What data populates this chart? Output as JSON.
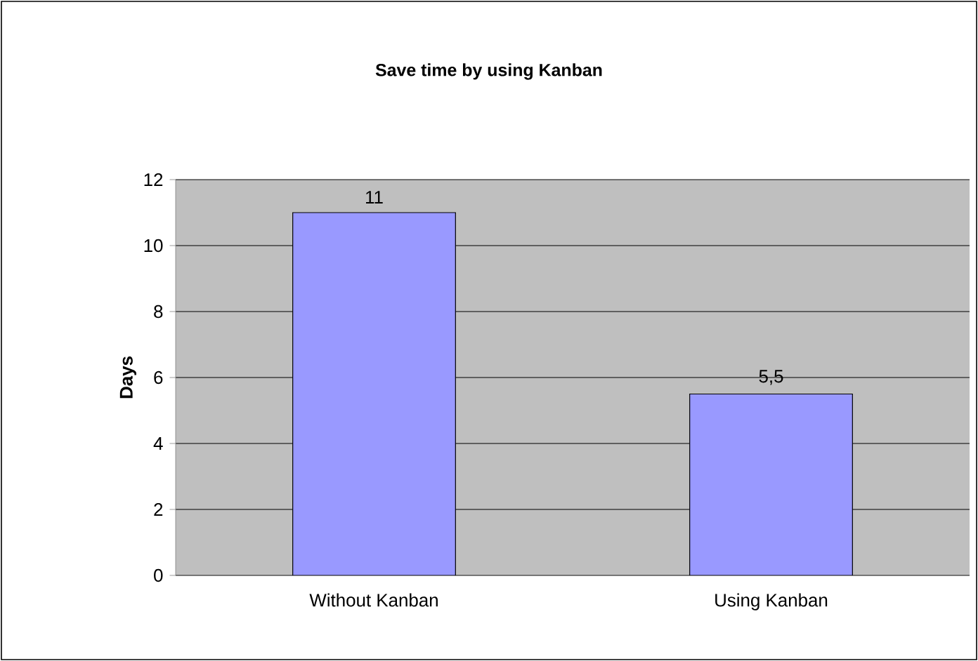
{
  "chart_data": {
    "type": "bar",
    "title": "Save time by using Kanban",
    "ylabel": "Days",
    "categories": [
      "Without Kanban",
      "Using Kanban"
    ],
    "values": [
      11,
      5.5
    ],
    "value_labels": [
      "11",
      "5,5"
    ],
    "color": "#9999ff",
    "ylim": [
      0,
      12
    ],
    "yticks": [
      0,
      2,
      4,
      6,
      8,
      10,
      12
    ],
    "grid": "y"
  }
}
